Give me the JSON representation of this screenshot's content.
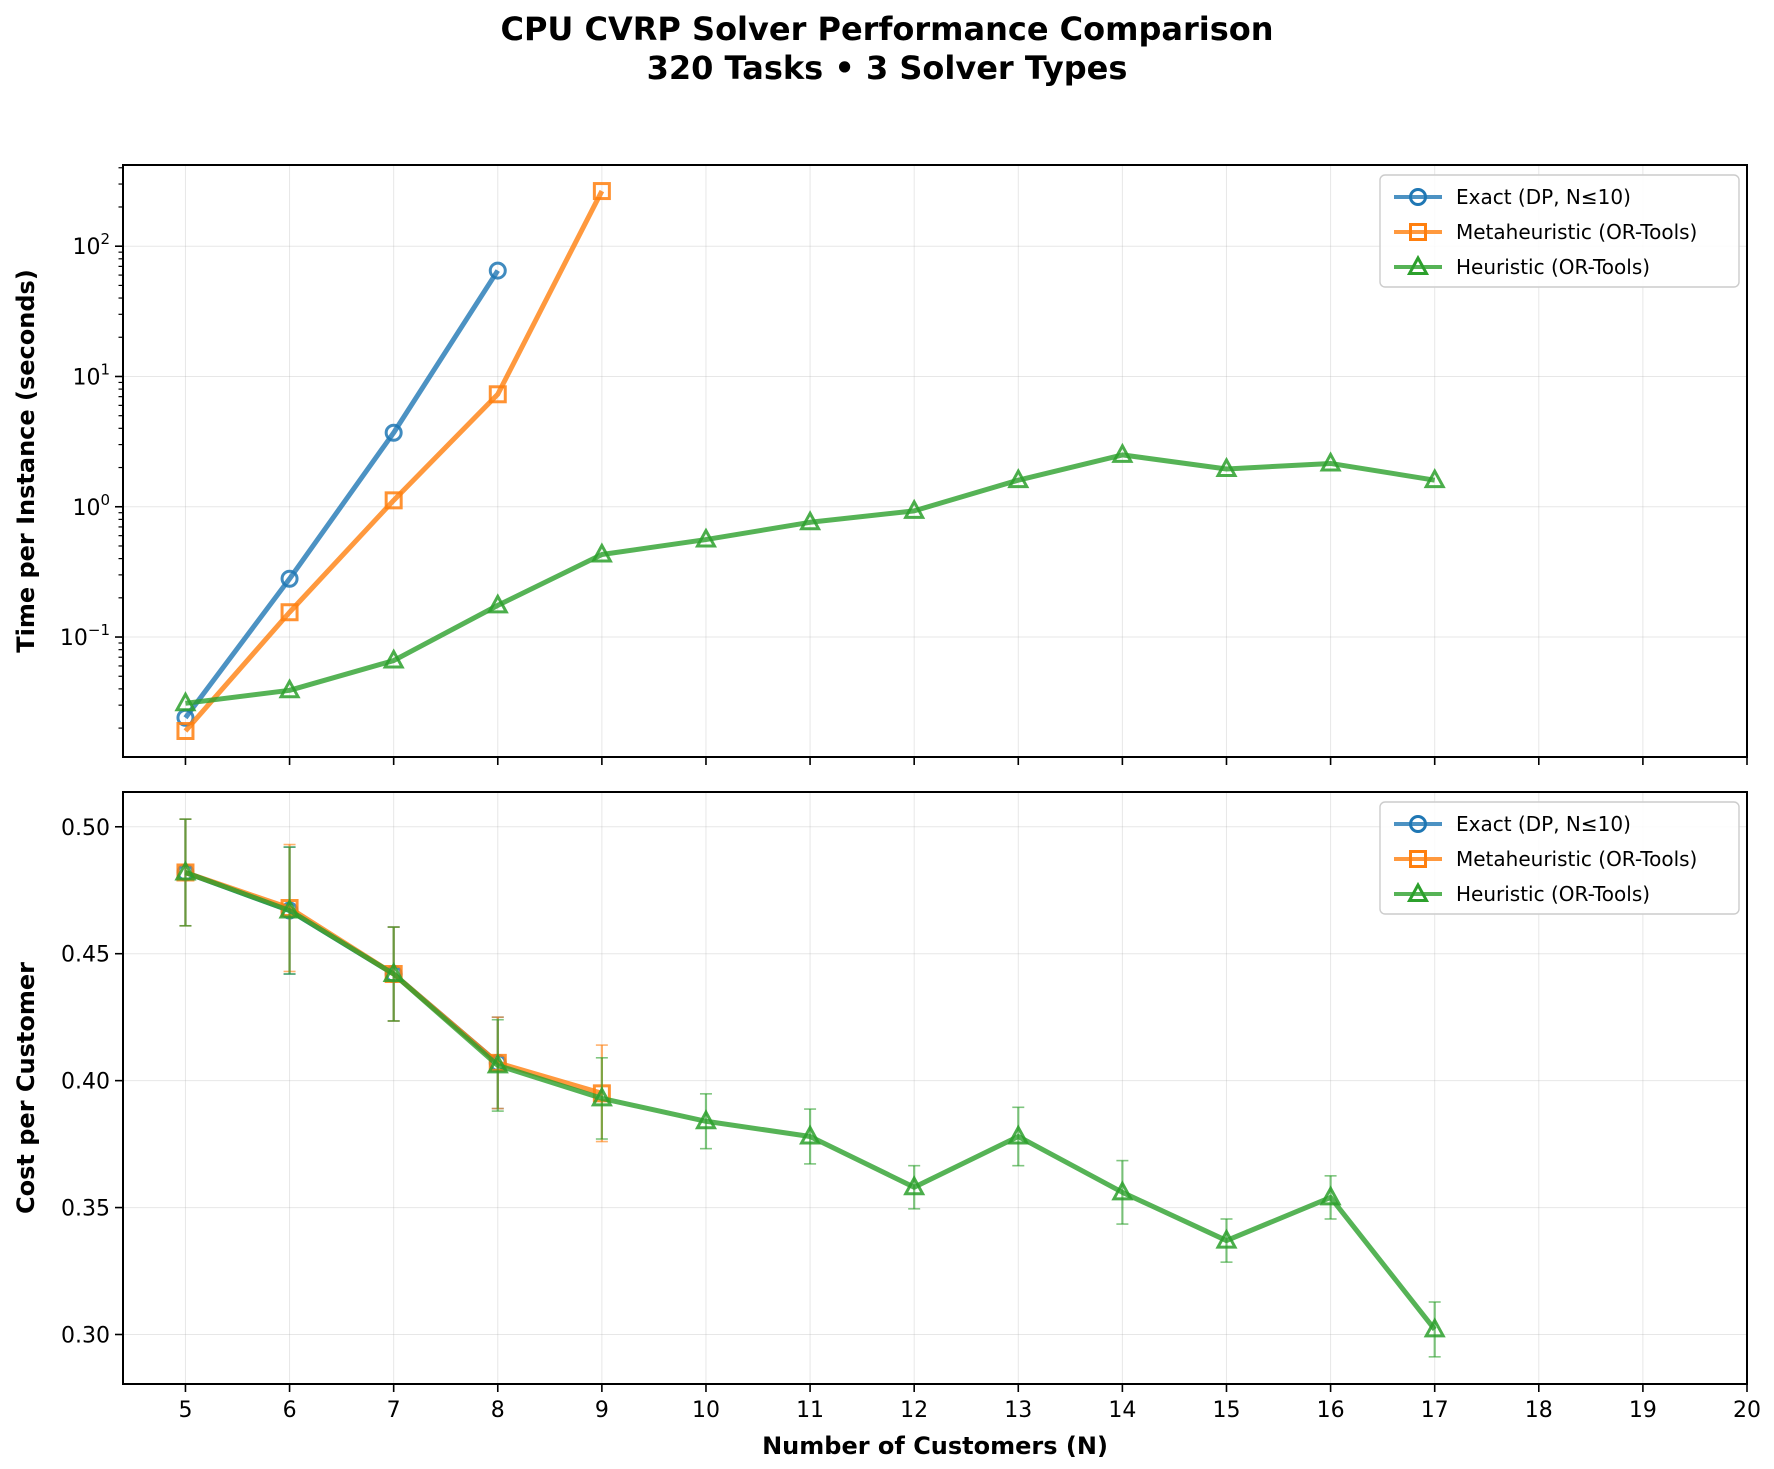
{
  "figure": {
    "title_line1": "CPU CVRP Solver Performance Comparison",
    "title_line2": "320 Tasks • 3 Solver Types"
  },
  "chart_data": [
    {
      "type": "line",
      "panel": "top",
      "ylabel": "Time per Instance (seconds)",
      "xlabel": "",
      "yscale": "log",
      "ylim": [
        0.012,
        420
      ],
      "xlim": [
        4.4,
        20
      ],
      "x_ticks": [
        5,
        6,
        7,
        8,
        9,
        10,
        11,
        12,
        13,
        14,
        15,
        16,
        17,
        18,
        19,
        20
      ],
      "y_ticks": [
        {
          "value": 0.1,
          "base": "10",
          "exp": "−1"
        },
        {
          "value": 1,
          "base": "10",
          "exp": "0"
        },
        {
          "value": 10,
          "base": "10",
          "exp": "1"
        },
        {
          "value": 100,
          "base": "10",
          "exp": "2"
        }
      ],
      "grid": true,
      "legend_position": "top-right",
      "series": [
        {
          "name": "Exact (DP, N≤10)",
          "color": "#1f77b4",
          "marker": "circle",
          "x": [
            5,
            6,
            7,
            8
          ],
          "y": [
            0.024,
            0.28,
            3.7,
            65
          ]
        },
        {
          "name": "Metaheuristic (OR-Tools)",
          "color": "#ff7f0e",
          "marker": "square",
          "x": [
            5,
            6,
            7,
            8,
            9
          ],
          "y": [
            0.019,
            0.155,
            1.12,
            7.3,
            265
          ]
        },
        {
          "name": "Heuristic (OR-Tools)",
          "color": "#2ca02c",
          "marker": "triangle",
          "x": [
            5,
            6,
            7,
            8,
            9,
            10,
            11,
            12,
            13,
            14,
            15,
            16,
            17
          ],
          "y": [
            0.031,
            0.039,
            0.066,
            0.175,
            0.43,
            0.56,
            0.76,
            0.93,
            1.6,
            2.5,
            1.95,
            2.15,
            1.6
          ]
        }
      ]
    },
    {
      "type": "line",
      "panel": "bottom",
      "ylabel": "Cost per Customer",
      "xlabel": "Number of Customers (N)",
      "yscale": "linear",
      "ylim": [
        0.2805,
        0.5137
      ],
      "xlim": [
        4.4,
        20
      ],
      "x_ticks": [
        5,
        6,
        7,
        8,
        9,
        10,
        11,
        12,
        13,
        14,
        15,
        16,
        17,
        18,
        19,
        20
      ],
      "y_ticks": [
        {
          "value": 0.3,
          "label": "0.30"
        },
        {
          "value": 0.35,
          "label": "0.35"
        },
        {
          "value": 0.4,
          "label": "0.40"
        },
        {
          "value": 0.45,
          "label": "0.45"
        },
        {
          "value": 0.5,
          "label": "0.50"
        }
      ],
      "grid": true,
      "legend_position": "top-right",
      "series": [
        {
          "name": "Exact (DP, N≤10)",
          "color": "#1f77b4",
          "marker": "circle",
          "x": [
            5,
            6,
            7,
            8
          ],
          "y": [
            0.482,
            0.467,
            0.442,
            0.407
          ],
          "err": [
            0.021,
            0.025,
            0.0185,
            0.018
          ]
        },
        {
          "name": "Metaheuristic (OR-Tools)",
          "color": "#ff7f0e",
          "marker": "square",
          "x": [
            5,
            6,
            7,
            8,
            9
          ],
          "y": [
            0.482,
            0.468,
            0.442,
            0.407,
            0.395
          ],
          "err": [
            0.021,
            0.025,
            0.0185,
            0.018,
            0.019
          ]
        },
        {
          "name": "Heuristic (OR-Tools)",
          "color": "#2ca02c",
          "marker": "triangle",
          "x": [
            5,
            6,
            7,
            8,
            9,
            10,
            11,
            12,
            13,
            14,
            15,
            16,
            17
          ],
          "y": [
            0.482,
            0.467,
            0.442,
            0.406,
            0.393,
            0.384,
            0.378,
            0.358,
            0.378,
            0.356,
            0.337,
            0.354,
            0.302
          ],
          "err": [
            0.021,
            0.025,
            0.0185,
            0.018,
            0.016,
            0.0108,
            0.0108,
            0.0085,
            0.0115,
            0.0125,
            0.0085,
            0.0085,
            0.0108
          ]
        }
      ]
    }
  ]
}
